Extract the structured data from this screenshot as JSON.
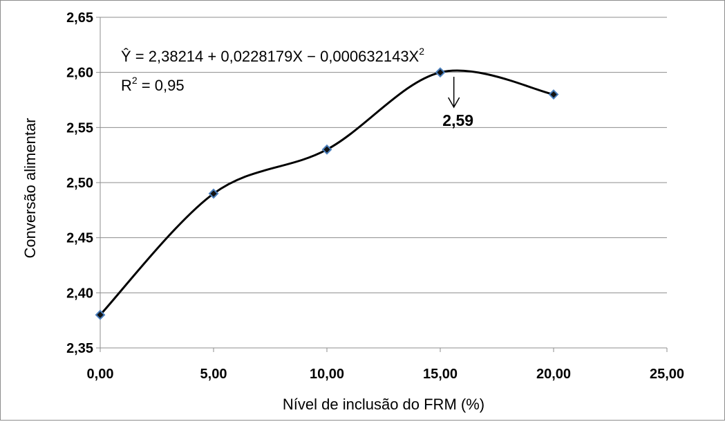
{
  "chart_data": {
    "type": "scatter",
    "xlabel": "Nível de inclusão do FRM (%)",
    "ylabel": "Conversão alimentar",
    "xlim": [
      0,
      25
    ],
    "ylim": [
      2.35,
      2.65
    ],
    "x_ticks": [
      "0,00",
      "5,00",
      "10,00",
      "15,00",
      "20,00",
      "25,00"
    ],
    "y_ticks": [
      "2,35",
      "2,40",
      "2,45",
      "2,50",
      "2,55",
      "2,60",
      "2,65"
    ],
    "grid": "horizontal",
    "legend": "none",
    "line": "smoothed",
    "series": [
      {
        "x": [
          0,
          5,
          10,
          15,
          20
        ],
        "y": [
          2.38,
          2.49,
          2.53,
          2.6,
          2.58
        ],
        "marker": "diamond",
        "marker_color": "#4a7ebb",
        "line_color": "#000000"
      }
    ],
    "annotations": {
      "equation_prefix": "Ŷ = 2,38214 + 0,0228179X − 0,000632143X",
      "equation_sup": "2",
      "r2_prefix": "R",
      "r2_sup": "2",
      "r2_suffix": " = 0,95",
      "max_label": "2,59",
      "max_arrow_x": 15.6
    }
  }
}
